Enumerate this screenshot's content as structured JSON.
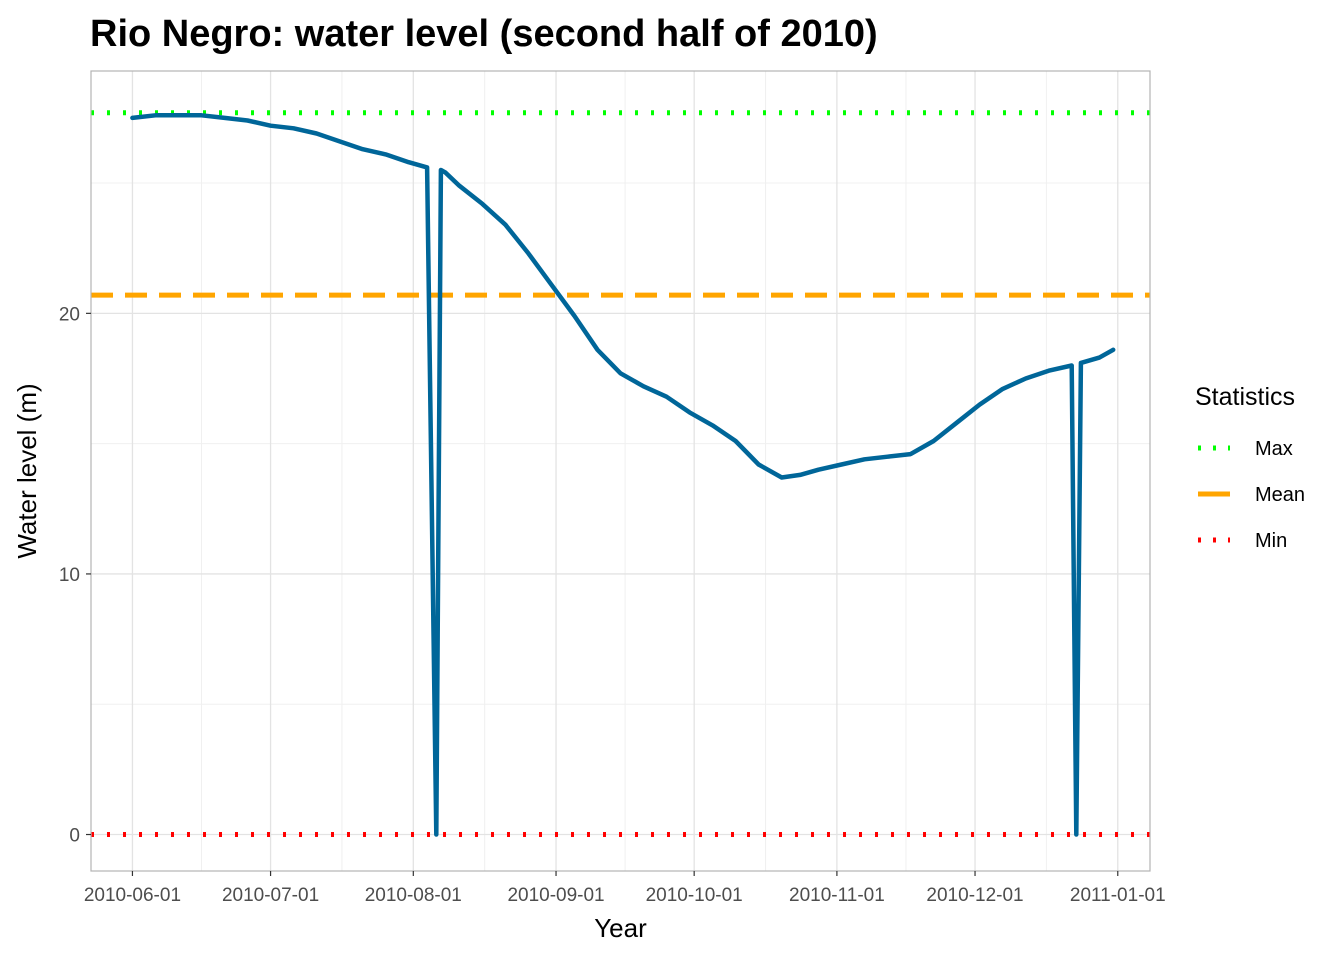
{
  "chart_data": {
    "type": "line",
    "title": "Rio Negro: water level (second half of 2010)",
    "xlabel": "Year",
    "ylabel": "Water level (m)",
    "xlim": [
      "2010-05-23",
      "2011-01-08"
    ],
    "ylim": [
      -1.4,
      29.3
    ],
    "x_ticks": [
      "2010-06-01",
      "2010-07-01",
      "2010-08-01",
      "2010-09-01",
      "2010-10-01",
      "2010-11-01",
      "2010-12-01",
      "2011-01-01"
    ],
    "y_ticks": [
      0,
      10,
      20
    ],
    "grid": true,
    "legend": {
      "title": "Statistics",
      "position": "right",
      "items": [
        {
          "label": "Max",
          "color": "#00ff00",
          "style": "dotted"
        },
        {
          "label": "Mean",
          "color": "#ffa500",
          "style": "dashed"
        },
        {
          "label": "Min",
          "color": "#ff0000",
          "style": "dotted"
        }
      ]
    },
    "reference_lines": [
      {
        "name": "Max",
        "value": 27.7,
        "color": "#00ff00",
        "style": "dotted"
      },
      {
        "name": "Mean",
        "value": 20.7,
        "color": "#ffa500",
        "style": "dashed"
      },
      {
        "name": "Min",
        "value": 0,
        "color": "#ff0000",
        "style": "dotted"
      }
    ],
    "series": [
      {
        "color": "#006699",
        "x": [
          "2010-06-01",
          "2010-06-06",
          "2010-06-11",
          "2010-06-16",
          "2010-06-21",
          "2010-06-26",
          "2010-07-01",
          "2010-07-06",
          "2010-07-11",
          "2010-07-16",
          "2010-07-21",
          "2010-07-26",
          "2010-07-31",
          "2010-08-04",
          "2010-08-06",
          "2010-08-07",
          "2010-08-08",
          "2010-08-11",
          "2010-08-16",
          "2010-08-21",
          "2010-08-26",
          "2010-08-31",
          "2010-09-05",
          "2010-09-10",
          "2010-09-15",
          "2010-09-20",
          "2010-09-25",
          "2010-09-30",
          "2010-10-05",
          "2010-10-10",
          "2010-10-15",
          "2010-10-20",
          "2010-10-24",
          "2010-10-28",
          "2010-11-02",
          "2010-11-07",
          "2010-11-12",
          "2010-11-17",
          "2010-11-22",
          "2010-11-27",
          "2010-12-02",
          "2010-12-07",
          "2010-12-12",
          "2010-12-17",
          "2010-12-22",
          "2010-12-23",
          "2010-12-24",
          "2010-12-28",
          "2010-12-31"
        ],
        "y": [
          27.5,
          27.6,
          27.6,
          27.6,
          27.5,
          27.4,
          27.2,
          27.1,
          26.9,
          26.6,
          26.3,
          26.1,
          25.8,
          25.6,
          0,
          25.5,
          25.4,
          24.9,
          24.2,
          23.4,
          22.3,
          21.1,
          19.9,
          18.6,
          17.7,
          17.2,
          16.8,
          16.2,
          15.7,
          15.1,
          14.2,
          13.7,
          13.8,
          14.0,
          14.2,
          14.4,
          14.5,
          14.6,
          15.1,
          15.8,
          16.5,
          17.1,
          17.5,
          17.8,
          18.0,
          0,
          18.1,
          18.3,
          18.6
        ]
      }
    ]
  }
}
